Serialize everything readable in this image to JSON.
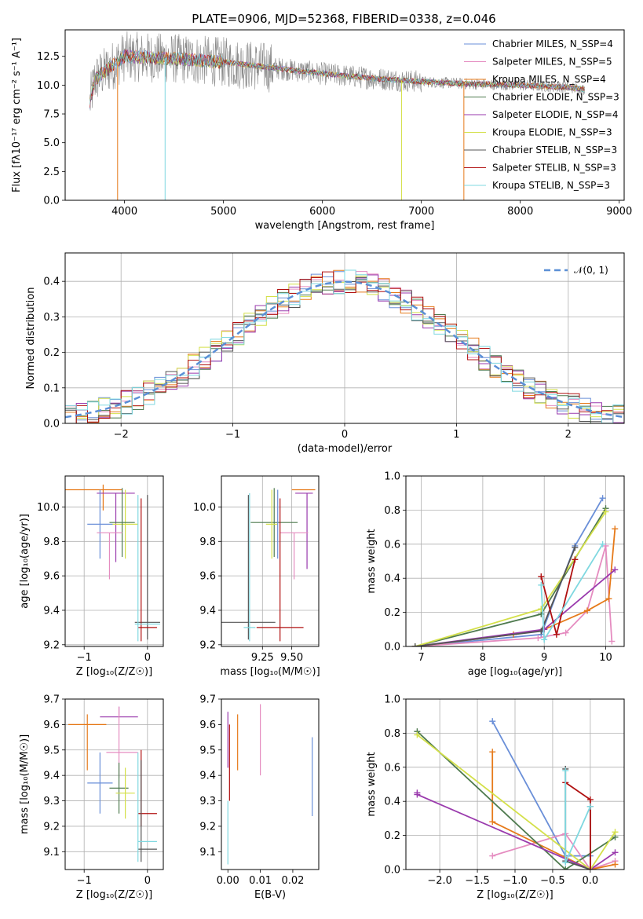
{
  "title": "PLATE=0906, MJD=52368, FIBERID=0338, z=0.046",
  "colors": [
    "#6a8fd8",
    "#e58cc0",
    "#e67a1a",
    "#4e7a4e",
    "#9a3aad",
    "#d4e04a",
    "#555555",
    "#b01010",
    "#7fd8e0"
  ],
  "model_names": [
    "Chabrier MILES",
    "Salpeter MILES",
    "Kroupa MILES",
    "Chabrier ELODIE",
    "Salpeter ELODIE",
    "Kroupa ELODIE",
    "Chabrier STELIB",
    "Salpeter STELIB",
    "Kroupa STELIB"
  ],
  "chart_data": [
    {
      "id": "spectrum",
      "type": "line",
      "xlabel": "wavelength [Angstrom, rest frame]",
      "ylabel": "Flux [fλ10⁻¹⁷ erg cm⁻² s⁻¹ A⁻¹]",
      "xlim": [
        3400,
        9050
      ],
      "ylim": [
        0,
        14.8
      ],
      "xticks": [
        4000,
        5000,
        6000,
        7000,
        8000,
        9000
      ],
      "yticks": [
        0.0,
        2.5,
        5.0,
        7.5,
        10.0,
        12.5
      ],
      "legend": [
        "Chabrier MILES, N_SSP=4",
        "Salpeter MILES, N_SSP=5",
        "Kroupa MILES, N_SSP=4",
        "Chabrier ELODIE, N_SSP=3",
        "Salpeter ELODIE, N_SSP=4",
        "Kroupa ELODIE, N_SSP=3",
        "Chabrier STELIB, N_SSP=3",
        "Salpeter STELIB, N_SSP=3",
        "Kroupa STELIB, N_SSP=3"
      ],
      "legend_placement": "top-right",
      "data_x_range": [
        3650,
        8650
      ],
      "continuum": [
        [
          3650,
          8.5
        ],
        [
          3700,
          10.5
        ],
        [
          4000,
          12.5
        ],
        [
          4500,
          12.3
        ],
        [
          5000,
          12.0
        ],
        [
          5500,
          11.5
        ],
        [
          6000,
          11.0
        ],
        [
          6500,
          10.6
        ],
        [
          7000,
          10.3
        ],
        [
          7500,
          10.1
        ],
        [
          8000,
          10.0
        ],
        [
          8500,
          9.8
        ],
        [
          8650,
          9.6
        ]
      ],
      "drops": [
        {
          "x": 3930,
          "y": 0,
          "series": 2
        },
        {
          "x": 4410,
          "y": 0,
          "series": 8
        },
        {
          "x": 6800,
          "y": 0,
          "series": 5
        },
        {
          "x": 7430,
          "y": 0,
          "series": 2
        }
      ],
      "grid": false
    },
    {
      "id": "residuals",
      "type": "line",
      "xlabel": "(data-model)/error",
      "ylabel": "Normed distribution",
      "xlim": [
        -2.5,
        2.5
      ],
      "ylim": [
        0,
        0.48
      ],
      "xticks": [
        -2,
        -1,
        0,
        1,
        2
      ],
      "yticks": [
        0.0,
        0.1,
        0.2,
        0.3,
        0.4
      ],
      "legend": [
        "𝒩(0, 1)"
      ],
      "legend_placement": "top-right",
      "gaussian": {
        "mu": 0,
        "sigma": 1
      },
      "grid": true
    },
    {
      "id": "age-vs-z",
      "type": "scatter",
      "xlabel": "Z [log₁₀(Z/Z☉)]",
      "ylabel": "age  [log₁₀(age/yr)]",
      "xlim": [
        -1.3,
        0.25
      ],
      "ylim": [
        9.19,
        10.18
      ],
      "xticks": [
        -1,
        0
      ],
      "yticks": [
        9.2,
        9.4,
        9.6,
        9.8,
        10.0
      ],
      "grid": true,
      "points": [
        {
          "series": 2,
          "x": -0.7,
          "y": 10.1,
          "xerr": [
            0.6,
            0.3
          ],
          "yerr": [
            0.12,
            0.03
          ]
        },
        {
          "series": 4,
          "x": -0.5,
          "y": 10.08,
          "xerr": [
            0.3,
            0.3
          ],
          "yerr": [
            0.4,
            0.0
          ]
        },
        {
          "series": 0,
          "x": -0.75,
          "y": 9.9,
          "xerr": [
            0.2,
            0.2
          ],
          "yerr": [
            0.2,
            0.2
          ]
        },
        {
          "series": 5,
          "x": -0.35,
          "y": 9.9,
          "xerr": [
            0.2,
            0.2
          ],
          "yerr": [
            0.2,
            0.2
          ]
        },
        {
          "series": 3,
          "x": -0.4,
          "y": 9.91,
          "xerr": [
            0.2,
            0.2
          ],
          "yerr": [
            0.2,
            0.2
          ]
        },
        {
          "series": 1,
          "x": -0.6,
          "y": 9.85,
          "xerr": [
            0.2,
            0.2
          ],
          "yerr": [
            0.27,
            0.0
          ]
        },
        {
          "series": 6,
          "x": 0.0,
          "y": 9.33,
          "xerr": [
            0.2,
            0.2
          ],
          "yerr": [
            0.1,
            0.74
          ]
        },
        {
          "series": 7,
          "x": -0.1,
          "y": 9.3,
          "xerr": [
            0.05,
            0.25
          ],
          "yerr": [
            0.08,
            0.75
          ]
        },
        {
          "series": 8,
          "x": -0.15,
          "y": 9.32,
          "xerr": [
            0.05,
            0.35
          ],
          "yerr": [
            0.1,
            0.75
          ]
        }
      ]
    },
    {
      "id": "age-vs-mass",
      "type": "scatter",
      "xlabel": "mass [log₁₀(M/M☉)]",
      "ylabel": "",
      "xlim": [
        8.9,
        9.73
      ],
      "ylim": [
        9.19,
        10.18
      ],
      "xticks": [
        9.25,
        9.5
      ],
      "yticks": [
        9.2,
        9.4,
        9.6,
        9.8,
        10.0
      ],
      "grid": true,
      "points": [
        {
          "series": 2,
          "x": 9.6,
          "y": 10.1,
          "xerr": [
            0.1,
            0.1
          ],
          "yerr": [
            0.0,
            0.0
          ]
        },
        {
          "series": 4,
          "x": 9.63,
          "y": 10.08,
          "xerr": [
            0.1,
            0.05
          ],
          "yerr": [
            0.44,
            0.0
          ]
        },
        {
          "series": 3,
          "x": 9.35,
          "y": 9.91,
          "xerr": [
            0.2,
            0.2
          ],
          "yerr": [
            0.2,
            0.2
          ]
        },
        {
          "series": 5,
          "x": 9.33,
          "y": 9.9,
          "xerr": [
            0.05,
            0.05
          ],
          "yerr": [
            0.2,
            0.2
          ]
        },
        {
          "series": 1,
          "x": 9.52,
          "y": 9.85,
          "xerr": [
            0.12,
            0.12
          ],
          "yerr": [
            0.27,
            0.0
          ]
        },
        {
          "series": 0,
          "x": 9.38,
          "y": 9.9,
          "xerr": [
            0.0,
            0.0
          ],
          "yerr": [
            0.2,
            0.2
          ]
        },
        {
          "series": 6,
          "x": 9.13,
          "y": 9.33,
          "xerr": [
            0.23,
            0.23
          ],
          "yerr": [
            0.1,
            0.74
          ]
        },
        {
          "series": 7,
          "x": 9.4,
          "y": 9.3,
          "xerr": [
            0.2,
            0.2
          ],
          "yerr": [
            0.08,
            0.75
          ]
        },
        {
          "series": 8,
          "x": 9.14,
          "y": 9.3,
          "xerr": [
            0.05,
            0.05
          ],
          "yerr": [
            0.08,
            0.78
          ]
        }
      ]
    },
    {
      "id": "mass-weight-vs-age",
      "type": "line",
      "xlabel": "age  [log₁₀(age/yr)]",
      "ylabel": "mass weight",
      "xlim": [
        6.75,
        10.3
      ],
      "ylim": [
        0,
        1.0
      ],
      "xticks": [
        7,
        8,
        9,
        10
      ],
      "yticks": [
        0.0,
        0.2,
        0.4,
        0.6,
        0.8,
        1.0
      ],
      "grid": true,
      "series": [
        {
          "series": 0,
          "x": [
            6.9,
            8.95,
            9.5,
            9.95
          ],
          "y": [
            0.0,
            0.07,
            0.59,
            0.87
          ]
        },
        {
          "series": 1,
          "x": [
            6.9,
            8.9,
            9.35,
            9.7,
            10.0,
            10.1
          ],
          "y": [
            0.0,
            0.05,
            0.08,
            0.21,
            0.59,
            0.03
          ]
        },
        {
          "series": 2,
          "x": [
            6.9,
            8.5,
            9.0,
            9.7,
            10.05,
            10.15
          ],
          "y": [
            0.0,
            0.07,
            0.1,
            0.21,
            0.28,
            0.69
          ]
        },
        {
          "series": 3,
          "x": [
            6.9,
            8.95,
            10.0
          ],
          "y": [
            0.0,
            0.19,
            0.81
          ]
        },
        {
          "series": 4,
          "x": [
            6.9,
            9.0,
            10.15
          ],
          "y": [
            0.0,
            0.1,
            0.45
          ]
        },
        {
          "series": 5,
          "x": [
            6.9,
            8.95,
            10.0
          ],
          "y": [
            0.0,
            0.22,
            0.79
          ]
        },
        {
          "series": 6,
          "x": [
            6.9,
            8.95,
            9.5
          ],
          "y": [
            0.0,
            0.09,
            0.58
          ]
        },
        {
          "series": 7,
          "x": [
            8.95,
            9.2,
            9.5
          ],
          "y": [
            0.41,
            0.07,
            0.51
          ]
        },
        {
          "series": 8,
          "x": [
            8.95,
            9.0,
            9.95
          ],
          "y": [
            0.36,
            0.04,
            0.6
          ]
        }
      ]
    },
    {
      "id": "mass-vs-z",
      "type": "scatter",
      "xlabel": "Z [log₁₀(Z/Z☉)]",
      "ylabel": "mass [log₁₀(M/M☉)]",
      "xlim": [
        -1.3,
        0.25
      ],
      "ylim": [
        9.03,
        9.7
      ],
      "xticks": [
        -1,
        0
      ],
      "yticks": [
        9.1,
        9.2,
        9.3,
        9.4,
        9.5,
        9.6,
        9.7
      ],
      "grid": true,
      "points": [
        {
          "series": 2,
          "x": -0.95,
          "y": 9.6,
          "xerr": [
            0.3,
            0.3
          ],
          "yerr": [
            0.18,
            0.04
          ]
        },
        {
          "series": 4,
          "x": -0.45,
          "y": 9.63,
          "xerr": [
            0.3,
            0.3
          ],
          "yerr": [
            0.0,
            0.04
          ]
        },
        {
          "series": 1,
          "x": -0.45,
          "y": 9.49,
          "xerr": [
            0.2,
            0.3
          ],
          "yerr": [
            0.1,
            0.18
          ]
        },
        {
          "series": 0,
          "x": -0.75,
          "y": 9.37,
          "xerr": [
            0.2,
            0.2
          ],
          "yerr": [
            0.12,
            0.12
          ]
        },
        {
          "series": 3,
          "x": -0.45,
          "y": 9.35,
          "xerr": [
            0.15,
            0.15
          ],
          "yerr": [
            0.1,
            0.1
          ]
        },
        {
          "series": 5,
          "x": -0.35,
          "y": 9.33,
          "xerr": [
            0.15,
            0.15
          ],
          "yerr": [
            0.1,
            0.1
          ]
        },
        {
          "series": 7,
          "x": -0.1,
          "y": 9.25,
          "xerr": [
            0.05,
            0.25
          ],
          "yerr": [
            0.05,
            0.25
          ]
        },
        {
          "series": 6,
          "x": -0.1,
          "y": 9.11,
          "xerr": [
            0.05,
            0.25
          ],
          "yerr": [
            0.05,
            0.35
          ]
        },
        {
          "series": 8,
          "x": -0.15,
          "y": 9.14,
          "xerr": [
            0.0,
            0.3
          ],
          "yerr": [
            0.08,
            0.35
          ]
        }
      ]
    },
    {
      "id": "mass-vs-ebv",
      "type": "scatter",
      "xlabel": "E(B-V)",
      "ylabel": "",
      "xlim": [
        -0.002,
        0.028
      ],
      "ylim": [
        9.03,
        9.7
      ],
      "xticks": [
        0.0,
        0.01,
        0.02
      ],
      "yticks": [
        9.1,
        9.2,
        9.3,
        9.4,
        9.5,
        9.6,
        9.7
      ],
      "grid": false,
      "points": [
        {
          "series": 2,
          "x": 0.003,
          "y": 9.5,
          "xerr": [
            0,
            0
          ],
          "yerr": [
            0.08,
            0.14
          ]
        },
        {
          "series": 1,
          "x": 0.01,
          "y": 9.55,
          "xerr": [
            0,
            0
          ],
          "yerr": [
            0.15,
            0.13
          ]
        },
        {
          "series": 0,
          "x": 0.026,
          "y": 9.4,
          "xerr": [
            0,
            0
          ],
          "yerr": [
            0.16,
            0.15
          ]
        },
        {
          "series": 4,
          "x": 0.0,
          "y": 9.55,
          "xerr": [
            0,
            0
          ],
          "yerr": [
            0.12,
            0.1
          ]
        },
        {
          "series": 7,
          "x": 0.0005,
          "y": 9.45,
          "xerr": [
            0,
            0
          ],
          "yerr": [
            0.15,
            0.15
          ]
        },
        {
          "series": 8,
          "x": 0.0,
          "y": 9.15,
          "xerr": [
            0,
            0
          ],
          "yerr": [
            0.1,
            0.15
          ]
        }
      ]
    },
    {
      "id": "mass-weight-vs-z",
      "type": "line",
      "xlabel": "Z [log₁₀(Z/Z☉)]",
      "ylabel": "mass weight",
      "xlim": [
        -2.45,
        0.45
      ],
      "ylim": [
        0,
        1.0
      ],
      "xticks": [
        -2.0,
        -1.5,
        -1.0,
        -0.5,
        0.0
      ],
      "yticks": [
        0.0,
        0.2,
        0.4,
        0.6,
        0.8,
        1.0
      ],
      "grid": true,
      "series": [
        {
          "series": 0,
          "x": [
            -1.3,
            -0.33,
            0.0
          ],
          "y": [
            0.87,
            0.08,
            0.08
          ]
        },
        {
          "series": 1,
          "x": [
            -1.3,
            -0.33,
            0.0,
            0.33
          ],
          "y": [
            0.08,
            0.21,
            0.0,
            0.05
          ]
        },
        {
          "series": 2,
          "x": [
            -1.3,
            -1.3,
            0.0,
            0.33
          ],
          "y": [
            0.69,
            0.28,
            0.0,
            0.03
          ]
        },
        {
          "series": 3,
          "x": [
            -2.3,
            -0.33,
            0.33
          ],
          "y": [
            0.81,
            0.0,
            0.19
          ]
        },
        {
          "series": 4,
          "x": [
            -2.3,
            -2.3,
            0.0,
            0.33
          ],
          "y": [
            0.45,
            0.44,
            0.0,
            0.1
          ]
        },
        {
          "series": 5,
          "x": [
            -2.3,
            0.0,
            0.33
          ],
          "y": [
            0.79,
            0.0,
            0.22
          ]
        },
        {
          "series": 6,
          "x": [
            -0.33,
            -0.33,
            0.0,
            0.0
          ],
          "y": [
            0.59,
            0.05,
            0.0,
            0.37
          ]
        },
        {
          "series": 7,
          "x": [
            -0.33,
            0.0,
            0.0
          ],
          "y": [
            0.51,
            0.41,
            0.0
          ]
        },
        {
          "series": 8,
          "x": [
            -0.33,
            -0.33,
            0.0
          ],
          "y": [
            0.58,
            0.04,
            0.37
          ]
        }
      ]
    }
  ]
}
